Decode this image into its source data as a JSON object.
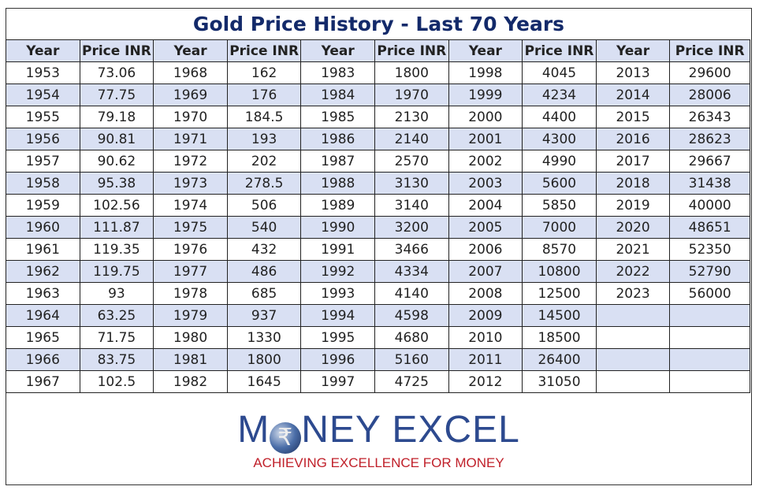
{
  "title": "Gold Price History - Last 70 Years",
  "headers": {
    "year": "Year",
    "price": "Price INR"
  },
  "groups": [
    {
      "years": [
        "1953",
        "1954",
        "1955",
        "1956",
        "1957",
        "1958",
        "1959",
        "1960",
        "1961",
        "1962",
        "1963",
        "1964",
        "1965",
        "1966",
        "1967"
      ],
      "prices": [
        "73.06",
        "77.75",
        "79.18",
        "90.81",
        "90.62",
        "95.38",
        "102.56",
        "111.87",
        "119.35",
        "119.75",
        "93",
        "63.25",
        "71.75",
        "83.75",
        "102.5"
      ]
    },
    {
      "years": [
        "1968",
        "1969",
        "1970",
        "1971",
        "1972",
        "1973",
        "1974",
        "1975",
        "1976",
        "1977",
        "1978",
        "1979",
        "1980",
        "1981",
        "1982"
      ],
      "prices": [
        "162",
        "176",
        "184.5",
        "193",
        "202",
        "278.5",
        "506",
        "540",
        "432",
        "486",
        "685",
        "937",
        "1330",
        "1800",
        "1645"
      ]
    },
    {
      "years": [
        "1983",
        "1984",
        "1985",
        "1986",
        "1987",
        "1988",
        "1989",
        "1990",
        "1991",
        "1992",
        "1993",
        "1994",
        "1995",
        "1996",
        "1997"
      ],
      "prices": [
        "1800",
        "1970",
        "2130",
        "2140",
        "2570",
        "3130",
        "3140",
        "3200",
        "3466",
        "4334",
        "4140",
        "4598",
        "4680",
        "5160",
        "4725"
      ]
    },
    {
      "years": [
        "1998",
        "1999",
        "2000",
        "2001",
        "2002",
        "2003",
        "2004",
        "2005",
        "2006",
        "2007",
        "2008",
        "2009",
        "2010",
        "2011",
        "2012"
      ],
      "prices": [
        "4045",
        "4234",
        "4400",
        "4300",
        "4990",
        "5600",
        "5850",
        "7000",
        "8570",
        "10800",
        "12500",
        "14500",
        "18500",
        "26400",
        "31050"
      ]
    },
    {
      "years": [
        "2013",
        "2014",
        "2015",
        "2016",
        "2017",
        "2018",
        "2019",
        "2020",
        "2021",
        "2022",
        "2023"
      ],
      "prices": [
        "29600",
        "28006",
        "26343",
        "28623",
        "29667",
        "31438",
        "40000",
        "48651",
        "52350",
        "52790",
        "56000"
      ]
    }
  ],
  "logo": {
    "text": "MONEY EXCEL",
    "tagline": "ACHIEVING EXCELLENCE FOR MONEY"
  },
  "colors": {
    "title": "#132a6a",
    "header_bg": "#d9e0f3",
    "logo_blue": "#2d4a8f",
    "tagline_red": "#c0202a"
  }
}
